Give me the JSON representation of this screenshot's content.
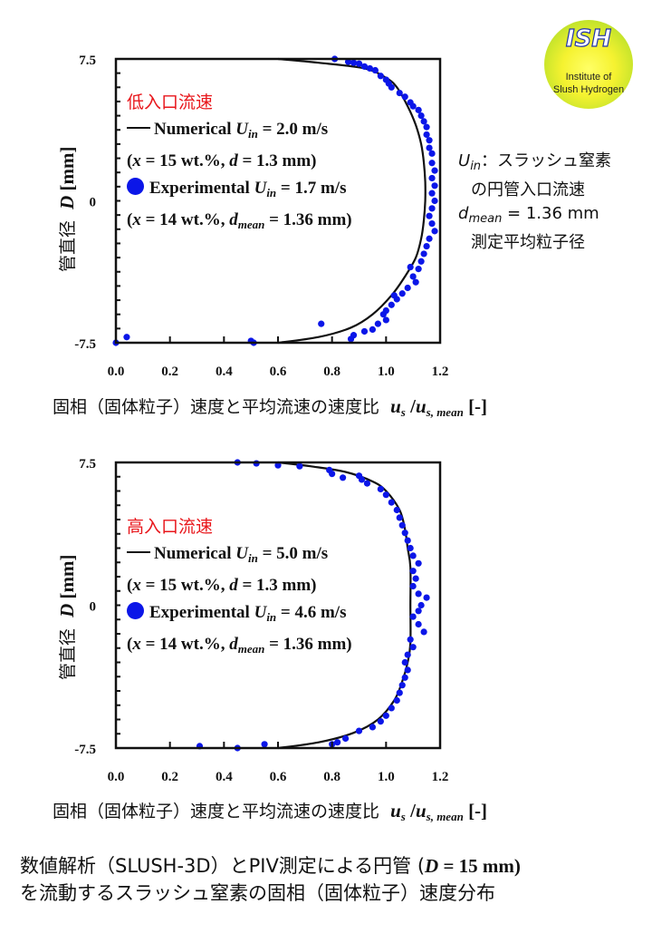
{
  "logo": {
    "text": "ISH",
    "subtitle_lines": [
      "Institute of",
      "Slush Hydrogen"
    ]
  },
  "note": {
    "line1": [
      {
        "t": "U",
        "s": "i"
      },
      {
        "t": "in",
        "s": "sub"
      },
      {
        "t": "：スラッシュ窒素",
        "s": ""
      }
    ],
    "line2": [
      {
        "t": "の円管入口流速",
        "s": ""
      }
    ],
    "line3": [
      {
        "t": "d",
        "s": "i"
      },
      {
        "t": "mean",
        "s": "sub"
      },
      {
        "t": " = 1.36 mm",
        "s": ""
      }
    ],
    "line4": [
      {
        "t": "測定平均粒子径",
        "s": ""
      }
    ]
  },
  "caption": {
    "line1_a": "数値解析（SLUSH-3D）とPIV測定による円管 (",
    "line1_D": "D",
    "line1_b": " = 15 mm)",
    "line2": "を流動するスラッシュ窒素の固相（固体粒子）速度分布"
  },
  "colors": {
    "experimental": "#0b16e8",
    "numerical": "#111111",
    "title": "#e8161b"
  },
  "chart_data": [
    {
      "type": "scatter",
      "title": "低入口流速",
      "xlabel": {
        "jp": "固相（固体粒子）速度と平均流速の速度比",
        "sym": "u",
        "sub1": "s",
        "mid": " /",
        "sym2": "u",
        "sub2": "s, mean",
        "unit": " [-]"
      },
      "ylabel": {
        "jp": "管直径",
        "sym": "D",
        "unit": " [mm]"
      },
      "xlim": [
        0,
        1.2
      ],
      "ylim": [
        -7.5,
        7.5
      ],
      "xticks": [
        "0.0",
        "0.2",
        "0.4",
        "0.6",
        "0.8",
        "1.0",
        "1.2"
      ],
      "yticks": [
        "7.5",
        "0",
        "-7.5"
      ],
      "grid": false,
      "legend": {
        "placement": "upper-left",
        "l1": [
          {
            "t": "Numerical ",
            "s": ""
          },
          {
            "t": "U",
            "s": "i"
          },
          {
            "t": "in",
            "s": "sub"
          },
          {
            "t": " = 2.0 m/s",
            "s": ""
          }
        ],
        "l2": [
          {
            "t": "(",
            "s": ""
          },
          {
            "t": "x",
            "s": "i"
          },
          {
            "t": " = 15 wt.%, ",
            "s": ""
          },
          {
            "t": "d",
            "s": "i"
          },
          {
            "t": " = 1.3 mm)",
            "s": ""
          }
        ],
        "l3": [
          {
            "t": "Experimental ",
            "s": ""
          },
          {
            "t": "U",
            "s": "i"
          },
          {
            "t": "in",
            "s": "sub"
          },
          {
            "t": " = 1.7 m/s",
            "s": ""
          }
        ],
        "l4": [
          {
            "t": "(",
            "s": ""
          },
          {
            "t": "x",
            "s": "i"
          },
          {
            "t": " = 14 wt.%, ",
            "s": ""
          },
          {
            "t": "d",
            "s": "i"
          },
          {
            "t": "mean",
            "s": "sub"
          },
          {
            "t": " = 1.36 mm)",
            "s": ""
          }
        ]
      },
      "numerical": {
        "x": [
          0.6,
          0.75,
          0.92,
          1.0,
          1.04,
          1.08,
          1.11,
          1.13,
          1.14,
          1.145,
          1.145,
          1.14,
          1.13,
          1.11,
          1.07,
          1.02,
          0.95,
          0.87,
          0.75,
          0.6
        ],
        "y": [
          7.5,
          7.3,
          7.0,
          6.5,
          6,
          5,
          4,
          3,
          2,
          1,
          0,
          -1,
          -2,
          -3,
          -4,
          -5,
          -6,
          -6.7,
          -7.2,
          -7.5
        ]
      },
      "experimental": [
        [
          0.81,
          7.5
        ],
        [
          0.86,
          7.35
        ],
        [
          0.88,
          7.3
        ],
        [
          0.9,
          7.25
        ],
        [
          0.92,
          7.1
        ],
        [
          0.94,
          7.0
        ],
        [
          0.96,
          6.9
        ],
        [
          0.98,
          6.6
        ],
        [
          1.0,
          6.4
        ],
        [
          1.01,
          6.2
        ],
        [
          1.02,
          6.0
        ],
        [
          1.05,
          5.7
        ],
        [
          1.07,
          5.5
        ],
        [
          1.09,
          5.2
        ],
        [
          1.1,
          5.0
        ],
        [
          1.12,
          4.8
        ],
        [
          1.13,
          4.5
        ],
        [
          1.14,
          4.2
        ],
        [
          1.15,
          3.9
        ],
        [
          1.15,
          3.5
        ],
        [
          1.16,
          3.2
        ],
        [
          1.16,
          2.8
        ],
        [
          1.17,
          2.5
        ],
        [
          1.17,
          2.0
        ],
        [
          1.18,
          1.6
        ],
        [
          1.17,
          1.2
        ],
        [
          1.18,
          0.8
        ],
        [
          1.17,
          0.4
        ],
        [
          1.18,
          0
        ],
        [
          1.17,
          -0.4
        ],
        [
          1.16,
          -0.8
        ],
        [
          1.17,
          -1.2
        ],
        [
          1.18,
          -1.6
        ],
        [
          1.16,
          -2.0
        ],
        [
          1.15,
          -2.4
        ],
        [
          1.14,
          -2.8
        ],
        [
          1.13,
          -3.2
        ],
        [
          1.12,
          -3.6
        ],
        [
          1.1,
          -4.0
        ],
        [
          1.11,
          -4.3
        ],
        [
          1.08,
          -4.6
        ],
        [
          1.06,
          -4.9
        ],
        [
          1.04,
          -5.2
        ],
        [
          1.02,
          -5.5
        ],
        [
          1.0,
          -5.8
        ],
        [
          0.99,
          -6.0
        ],
        [
          1.0,
          -6.3
        ],
        [
          0.97,
          -6.5
        ],
        [
          0.95,
          -6.8
        ],
        [
          0.92,
          -6.9
        ],
        [
          0.88,
          -7.1
        ],
        [
          0.87,
          -7.3
        ],
        [
          0.76,
          -6.5
        ],
        [
          0.5,
          -7.4
        ],
        [
          0.51,
          -7.5
        ],
        [
          0.04,
          -7.2
        ],
        [
          0.0,
          -7.5
        ],
        [
          1.03,
          -5.0
        ],
        [
          1.09,
          -3.5
        ]
      ]
    },
    {
      "type": "scatter",
      "title": "高入口流速",
      "xlabel": {
        "jp": "固相（固体粒子）速度と平均流速の速度比",
        "sym": "u",
        "sub1": "s",
        "mid": " /",
        "sym2": "u",
        "sub2": "s, mean",
        "unit": " [-]"
      },
      "ylabel": {
        "jp": "管直径",
        "sym": "D",
        "unit": " [mm]"
      },
      "xlim": [
        0,
        1.2
      ],
      "ylim": [
        -7.5,
        7.5
      ],
      "xticks": [
        "0.0",
        "0.2",
        "0.4",
        "0.6",
        "0.8",
        "1.0",
        "1.2"
      ],
      "yticks": [
        "7.5",
        "0",
        "-7.5"
      ],
      "grid": false,
      "legend": {
        "placement": "upper-left",
        "l1": [
          {
            "t": "Numerical ",
            "s": ""
          },
          {
            "t": "U",
            "s": "i"
          },
          {
            "t": "in",
            "s": "sub"
          },
          {
            "t": " = 5.0 m/s",
            "s": ""
          }
        ],
        "l2": [
          {
            "t": "(",
            "s": ""
          },
          {
            "t": "x",
            "s": "i"
          },
          {
            "t": " = 15 wt.%, ",
            "s": ""
          },
          {
            "t": "d",
            "s": "i"
          },
          {
            "t": " = 1.3 mm)",
            "s": ""
          }
        ],
        "l3": [
          {
            "t": "Experimental ",
            "s": ""
          },
          {
            "t": "U",
            "s": "i"
          },
          {
            "t": "in",
            "s": "sub"
          },
          {
            "t": " = 4.6 m/s",
            "s": ""
          }
        ],
        "l4": [
          {
            "t": "(",
            "s": ""
          },
          {
            "t": "x",
            "s": "i"
          },
          {
            "t": " = 14 wt.%, ",
            "s": ""
          },
          {
            "t": "d",
            "s": "i"
          },
          {
            "t": "mean",
            "s": "sub"
          },
          {
            "t": " = 1.36 mm)",
            "s": ""
          }
        ]
      },
      "numerical": {
        "x": [
          0.6,
          0.72,
          0.85,
          0.95,
          1.0,
          1.05,
          1.07,
          1.08,
          1.09,
          1.09,
          1.09,
          1.08,
          1.06,
          1.03,
          0.97,
          0.88,
          0.75,
          0.6
        ],
        "y": [
          7.5,
          7.3,
          7.0,
          6.5,
          6,
          5,
          4,
          3,
          2,
          0,
          -2,
          -3,
          -4,
          -5,
          -6,
          -6.7,
          -7.2,
          -7.5
        ]
      },
      "experimental": [
        [
          0.45,
          7.5
        ],
        [
          0.52,
          7.45
        ],
        [
          0.6,
          7.35
        ],
        [
          0.68,
          7.3
        ],
        [
          0.79,
          7.1
        ],
        [
          0.8,
          6.9
        ],
        [
          0.84,
          6.7
        ],
        [
          0.9,
          6.8
        ],
        [
          0.91,
          6.6
        ],
        [
          0.93,
          6.4
        ],
        [
          0.98,
          6.1
        ],
        [
          1.0,
          5.8
        ],
        [
          1.02,
          5.4
        ],
        [
          1.04,
          5.0
        ],
        [
          1.05,
          4.6
        ],
        [
          1.06,
          4.2
        ],
        [
          1.07,
          3.8
        ],
        [
          1.08,
          3.4
        ],
        [
          1.09,
          3.0
        ],
        [
          1.1,
          2.6
        ],
        [
          1.12,
          2.2
        ],
        [
          1.1,
          1.8
        ],
        [
          1.11,
          1.4
        ],
        [
          1.1,
          1.0
        ],
        [
          1.12,
          0.6
        ],
        [
          1.15,
          0.4
        ],
        [
          1.13,
          0
        ],
        [
          1.12,
          -0.3
        ],
        [
          1.1,
          -0.6
        ],
        [
          1.12,
          -1.0
        ],
        [
          1.14,
          -1.4
        ],
        [
          1.09,
          -1.8
        ],
        [
          1.1,
          -2.2
        ],
        [
          1.08,
          -2.6
        ],
        [
          1.07,
          -3.0
        ],
        [
          1.08,
          -3.4
        ],
        [
          1.07,
          -3.8
        ],
        [
          1.06,
          -4.2
        ],
        [
          1.05,
          -4.6
        ],
        [
          1.04,
          -5.0
        ],
        [
          1.02,
          -5.4
        ],
        [
          1.0,
          -5.8
        ],
        [
          0.98,
          -6.1
        ],
        [
          0.95,
          -6.4
        ],
        [
          0.9,
          -6.6
        ],
        [
          0.85,
          -7.0
        ],
        [
          0.82,
          -7.2
        ],
        [
          0.8,
          -7.3
        ],
        [
          0.55,
          -7.3
        ],
        [
          0.45,
          -7.5
        ],
        [
          0.31,
          -7.4
        ]
      ]
    }
  ]
}
